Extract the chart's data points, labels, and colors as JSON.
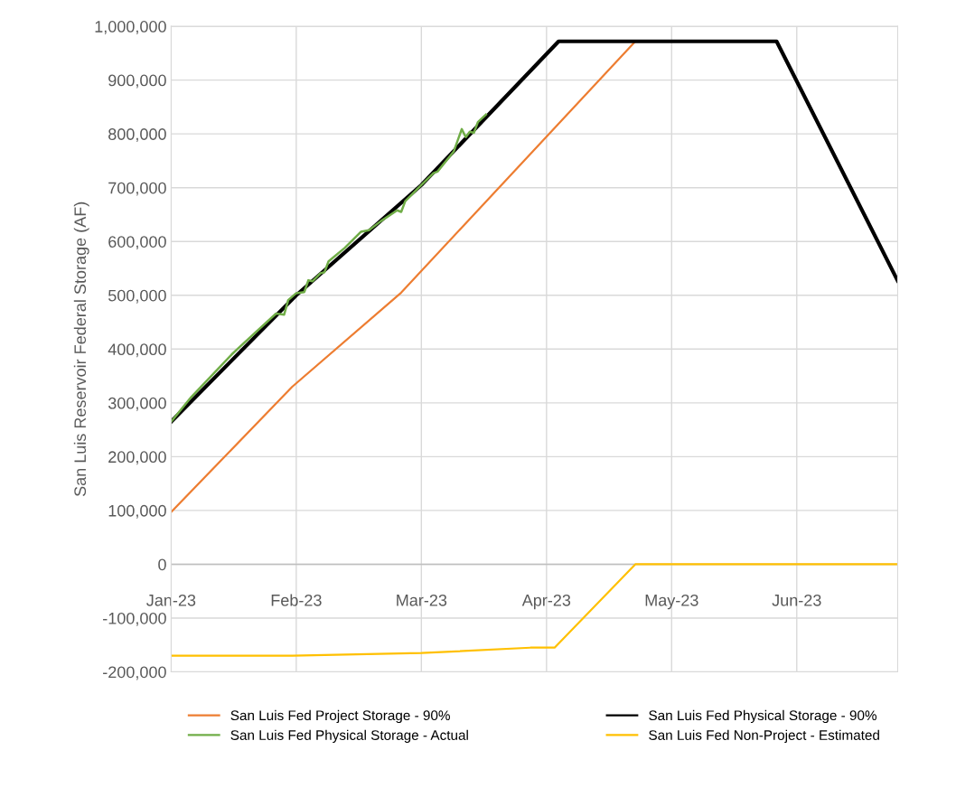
{
  "chart_data": {
    "type": "line",
    "ylabel": "San Luis Reservoir Federal Storage (AF)",
    "xlim": [
      "2023-01-01",
      "2023-06-30"
    ],
    "xticks": [
      {
        "value": "2023-01-01",
        "label": "Jan-23"
      },
      {
        "value": "2023-02-01",
        "label": "Feb-23"
      },
      {
        "value": "2023-03-04",
        "label": "Mar-23"
      },
      {
        "value": "2023-04-04",
        "label": "Apr-23"
      },
      {
        "value": "2023-05-05",
        "label": "May-23"
      },
      {
        "value": "2023-06-05",
        "label": "Jun-23"
      }
    ],
    "ylim": [
      -200000,
      1000000
    ],
    "yticks": [
      {
        "value": -200000,
        "label": "-200,000"
      },
      {
        "value": -100000,
        "label": "-100,000"
      },
      {
        "value": 0,
        "label": "0"
      },
      {
        "value": 100000,
        "label": "100,000"
      },
      {
        "value": 200000,
        "label": "200,000"
      },
      {
        "value": 300000,
        "label": "300,000"
      },
      {
        "value": 400000,
        "label": "400,000"
      },
      {
        "value": 500000,
        "label": "500,000"
      },
      {
        "value": 600000,
        "label": "600,000"
      },
      {
        "value": 700000,
        "label": "700,000"
      },
      {
        "value": 800000,
        "label": "800,000"
      },
      {
        "value": 900000,
        "label": "900,000"
      },
      {
        "value": 1000000,
        "label": "1,000,000"
      }
    ],
    "grid": true,
    "legend": "bottom",
    "marker": "none",
    "line_style": "solid",
    "series": [
      {
        "name": "San Luis Fed Project Storage - 90%",
        "color": "#ed7d31",
        "x": [
          "2023-01-01",
          "2023-01-31",
          "2023-02-27",
          "2023-04-26"
        ],
        "values": [
          97000,
          330000,
          505000,
          972000
        ]
      },
      {
        "name": "San Luis Fed Physical Storage - 90%",
        "color": "#000000",
        "x": [
          "2023-01-01",
          "2023-02-01",
          "2023-03-04",
          "2023-04-07",
          "2023-05-31",
          "2023-06-30"
        ],
        "values": [
          265000,
          500000,
          705000,
          972000,
          972000,
          527000
        ]
      },
      {
        "name": "San Luis Fed Physical Storage - Actual",
        "color": "#70ad47",
        "x": [
          "2023-01-01",
          "2023-01-06",
          "2023-01-16",
          "2023-01-18",
          "2023-01-27",
          "2023-01-29",
          "2023-01-30",
          "2023-02-01",
          "2023-02-03",
          "2023-02-04",
          "2023-02-05",
          "2023-02-07",
          "2023-02-08",
          "2023-02-09",
          "2023-02-13",
          "2023-02-17",
          "2023-02-19",
          "2023-02-22",
          "2023-02-26",
          "2023-02-27",
          "2023-02-28",
          "2023-03-04",
          "2023-03-07",
          "2023-03-08",
          "2023-03-12",
          "2023-03-14",
          "2023-03-15",
          "2023-03-16",
          "2023-03-17",
          "2023-03-18",
          "2023-03-20"
        ],
        "values": [
          265000,
          311000,
          390000,
          404000,
          466000,
          464000,
          491000,
          504000,
          506000,
          528000,
          526000,
          541000,
          543000,
          563000,
          588000,
          618000,
          621000,
          638000,
          658000,
          655000,
          675000,
          705000,
          727000,
          730000,
          767000,
          809000,
          794000,
          804000,
          802000,
          822000,
          836000
        ]
      },
      {
        "name": "San Luis Fed Non-Project - Estimated",
        "color": "#ffc000",
        "x": [
          "2023-01-01",
          "2023-01-31",
          "2023-03-04",
          "2023-03-31",
          "2023-04-06",
          "2023-04-26",
          "2023-06-30"
        ],
        "values": [
          -170000,
          -170000,
          -165000,
          -155000,
          -155000,
          0,
          0
        ]
      }
    ]
  }
}
